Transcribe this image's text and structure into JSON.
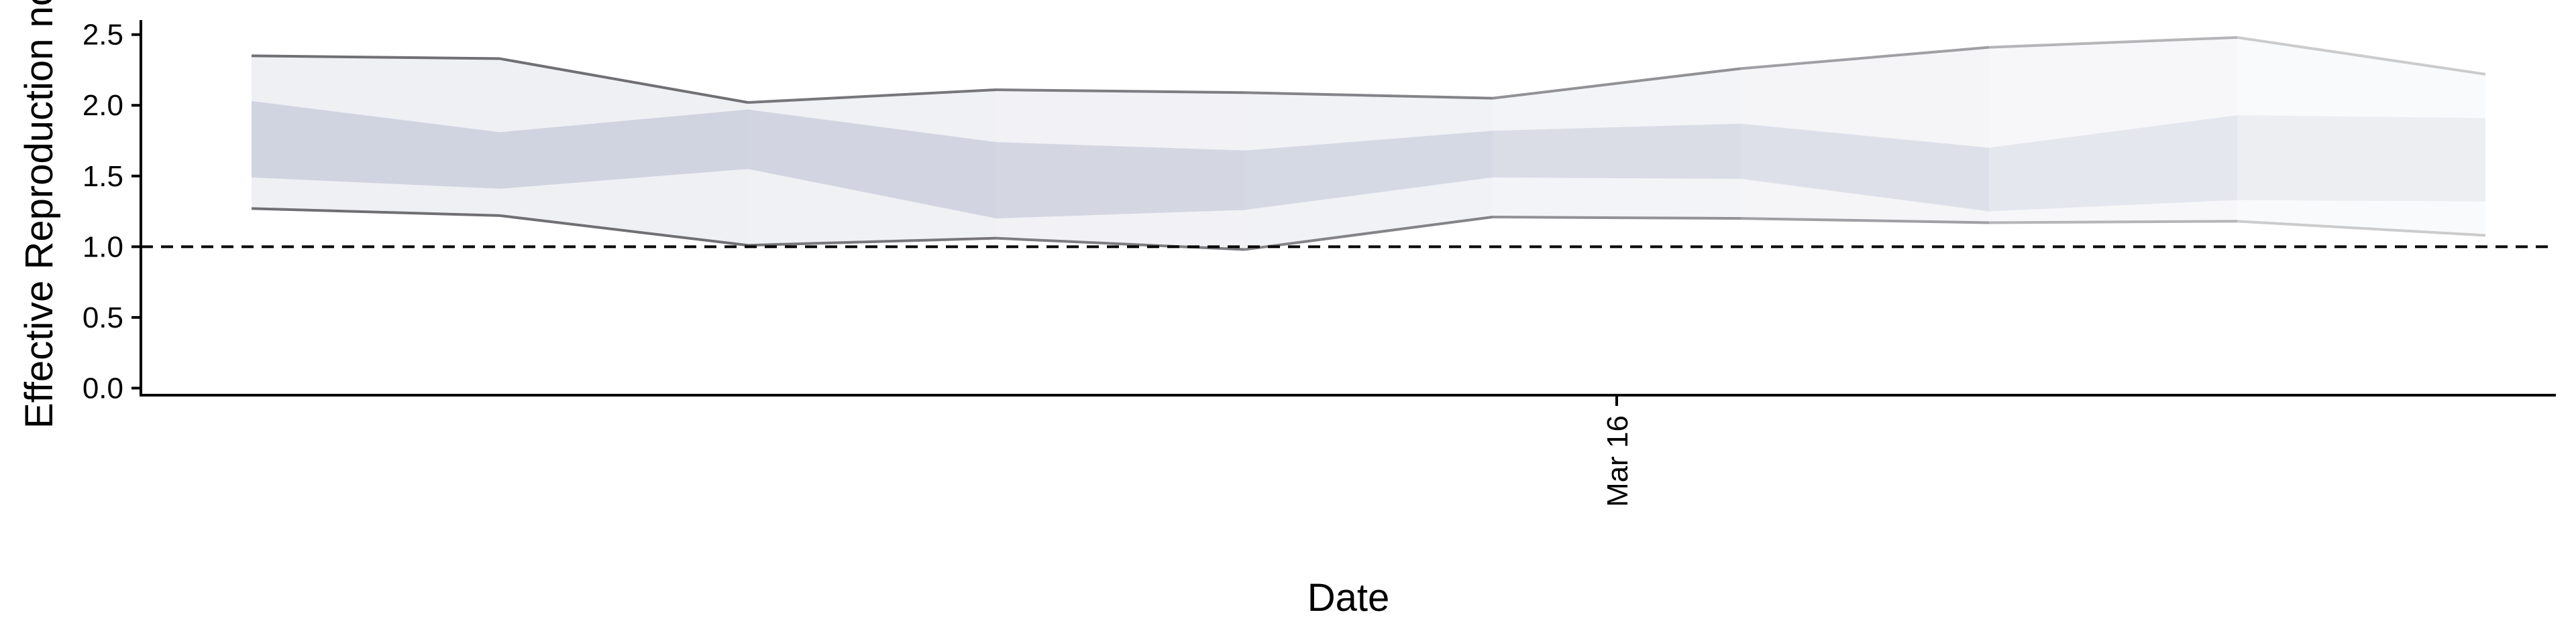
{
  "chart_data": {
    "type": "area",
    "xlabel": "Date",
    "ylabel": "Effective Reproduction no.",
    "ylim": [
      -0.05,
      2.65
    ],
    "yticks": [
      0.0,
      0.5,
      1.0,
      1.5,
      2.0,
      2.5
    ],
    "ytick_labels": [
      "0.0",
      "0.5",
      "1.0",
      "1.5",
      "2.0",
      "2.5"
    ],
    "xticks": [
      {
        "label": "Mar 16",
        "pos": 5.5
      }
    ],
    "reference_line": {
      "y": 1.0,
      "style": "dashed"
    },
    "x": [
      0,
      1,
      2,
      3,
      4,
      5,
      6,
      7,
      8,
      9
    ],
    "upper": [
      2.35,
      2.33,
      2.02,
      2.11,
      2.09,
      2.05,
      2.26,
      2.41,
      2.48,
      2.22
    ],
    "lower": [
      1.27,
      1.22,
      1.01,
      1.06,
      0.98,
      1.21,
      1.2,
      1.17,
      1.18,
      1.08
    ],
    "iqr_upper": [
      2.03,
      1.81,
      1.97,
      1.74,
      1.68,
      1.82,
      1.87,
      1.7,
      1.93,
      1.91
    ],
    "iqr_lower": [
      1.49,
      1.41,
      1.55,
      1.2,
      1.26,
      1.49,
      1.48,
      1.25,
      1.33,
      1.32
    ],
    "opacity": [
      1.0,
      1.0,
      0.95,
      0.9,
      0.85,
      0.75,
      0.65,
      0.5,
      0.35,
      0.25
    ],
    "colors": {
      "outer_band": "#dfe1ea",
      "inner_band": "#b7bccf",
      "bound_line": "#6f6f74",
      "axis": "#000000",
      "reference_line": "#000000"
    }
  }
}
